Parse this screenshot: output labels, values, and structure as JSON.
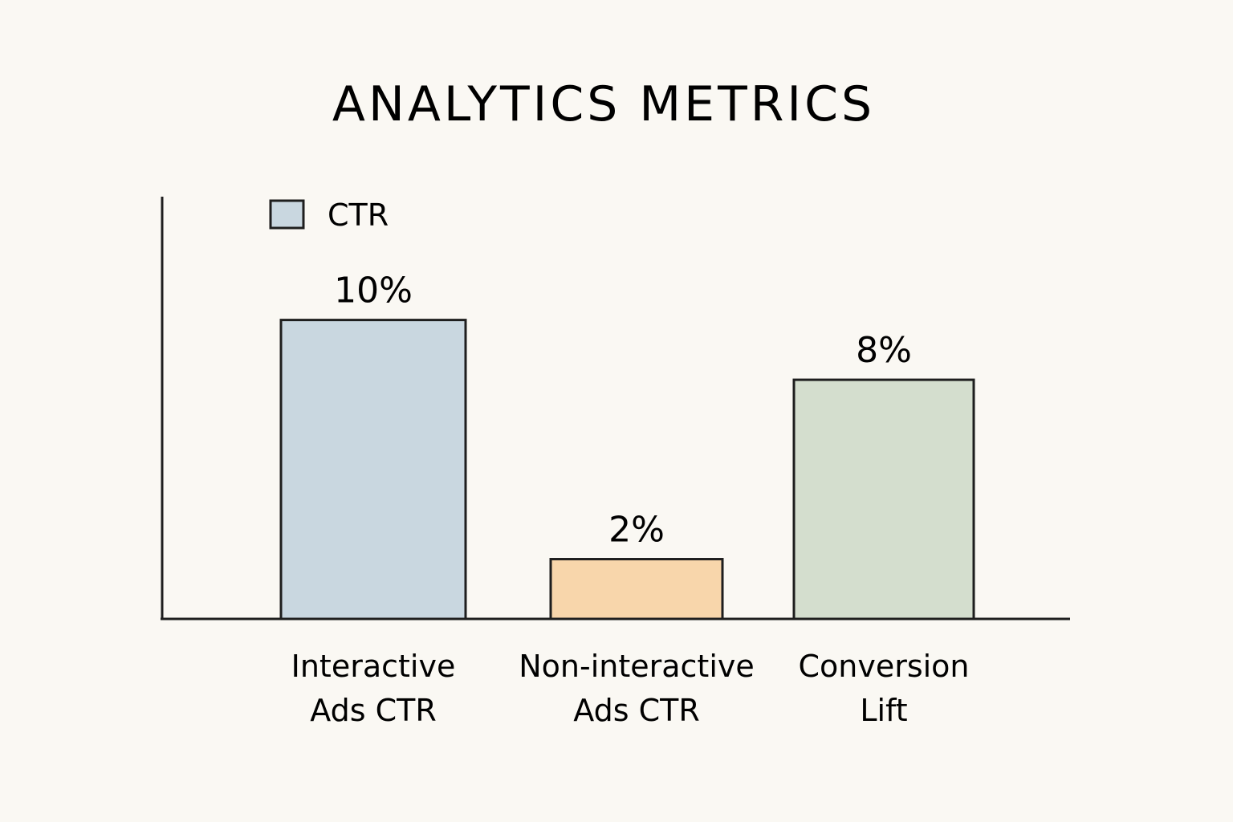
{
  "chart_data": {
    "type": "bar",
    "title": "ANALYTICS METRICS",
    "categories": [
      [
        "Interactive",
        "Ads CTR"
      ],
      [
        "Non-interactive",
        "Ads CTR"
      ],
      [
        "Conversion",
        "Lift"
      ]
    ],
    "values": [
      10,
      2,
      8
    ],
    "data_labels": [
      "10%",
      "2%",
      "8%"
    ],
    "unit": "%",
    "colors": [
      "#c9d7e0",
      "#f8d6ab",
      "#d4dece"
    ],
    "legend": {
      "entries": [
        {
          "label": "CTR",
          "color": "#c9d7e0"
        }
      ],
      "placement": "top-left"
    },
    "xlabel": "",
    "ylabel": "",
    "ylim": [
      0,
      10.5
    ],
    "grid": false,
    "y_ticks": false
  }
}
